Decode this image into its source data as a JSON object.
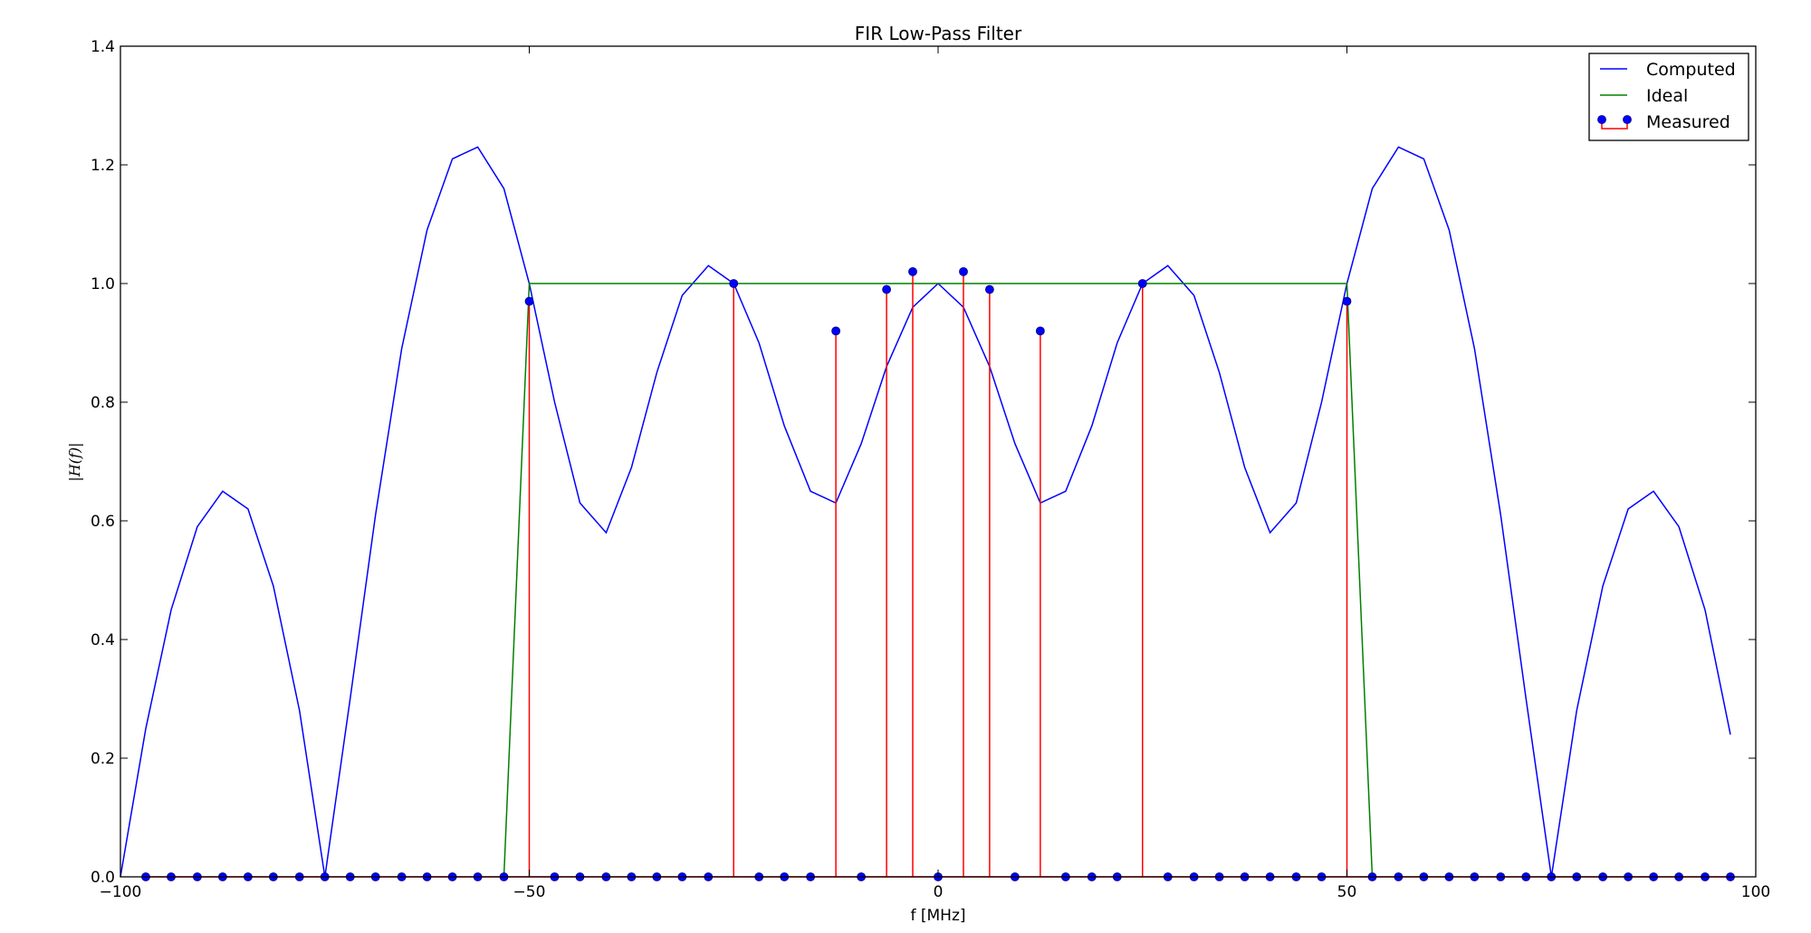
{
  "chart_data": {
    "type": "line",
    "title": "FIR Low-Pass Filter",
    "xlabel": "f [MHz]",
    "ylabel": "|H(f)|",
    "xlim": [
      -100,
      100
    ],
    "ylim": [
      0,
      1.4
    ],
    "xticks": [
      -100,
      -50,
      0,
      50,
      100
    ],
    "xtick_labels": [
      "−100",
      "−50",
      "0",
      "50",
      "100"
    ],
    "yticks": [
      0,
      0.2,
      0.4,
      0.6,
      0.8,
      1.0,
      1.2,
      1.4
    ],
    "ytick_labels": [
      "0.0",
      "0.2",
      "0.4",
      "0.6",
      "0.8",
      "1.0",
      "1.2",
      "1.4"
    ],
    "legend": {
      "placement": "top-right",
      "entries": [
        "Computed",
        "Ideal",
        "Measured"
      ]
    },
    "series": [
      {
        "name": "Computed",
        "kind": "line",
        "color": "#0000ff",
        "x": [
          -100,
          -96.9,
          -93.8,
          -90.6,
          -87.5,
          -84.4,
          -81.3,
          -78.1,
          -75,
          -71.9,
          -68.8,
          -65.6,
          -62.5,
          -59.4,
          -56.3,
          -53.1,
          -50,
          -46.9,
          -43.8,
          -40.6,
          -37.5,
          -34.4,
          -31.3,
          -28.1,
          -25,
          -21.9,
          -18.8,
          -15.6,
          -12.5,
          -9.4,
          -6.3,
          -3.1,
          0,
          3.1,
          6.3,
          9.4,
          12.5,
          15.6,
          18.8,
          21.9,
          25,
          28.1,
          31.3,
          34.4,
          37.5,
          40.6,
          43.8,
          46.9,
          50,
          53.1,
          56.3,
          59.4,
          62.5,
          65.6,
          68.8,
          71.9,
          75,
          78.1,
          81.3,
          84.4,
          87.5,
          90.6,
          93.8,
          96.9
        ],
        "values": [
          0.0,
          0.25,
          0.45,
          0.59,
          0.65,
          0.62,
          0.49,
          0.28,
          0.0,
          0.3,
          0.61,
          0.89,
          1.09,
          1.21,
          1.23,
          1.16,
          1.0,
          0.8,
          0.63,
          0.58,
          0.69,
          0.85,
          0.98,
          1.03,
          1.0,
          0.9,
          0.76,
          0.65,
          0.63,
          0.73,
          0.86,
          0.96,
          1.0,
          0.96,
          0.86,
          0.73,
          0.63,
          0.65,
          0.76,
          0.9,
          1.0,
          1.03,
          0.98,
          0.85,
          0.69,
          0.58,
          0.63,
          0.8,
          1.0,
          1.16,
          1.23,
          1.21,
          1.09,
          0.89,
          0.61,
          0.3,
          0.0,
          0.28,
          0.49,
          0.62,
          0.65,
          0.59,
          0.45,
          0.24
        ]
      },
      {
        "name": "Ideal",
        "kind": "line",
        "color": "#008000",
        "x": [
          -53.1,
          -50,
          50,
          53.1
        ],
        "values": [
          0,
          1,
          1,
          0
        ]
      },
      {
        "name": "Measured",
        "kind": "stem",
        "color": "#ff0000",
        "marker_color": "#0000ff",
        "x": [
          -96.9,
          -93.8,
          -90.6,
          -87.5,
          -84.4,
          -81.3,
          -78.1,
          -75,
          -71.9,
          -68.8,
          -65.6,
          -62.5,
          -59.4,
          -56.3,
          -53.1,
          -50,
          -46.9,
          -43.8,
          -40.6,
          -37.5,
          -34.4,
          -31.3,
          -28.1,
          -25,
          -21.9,
          -18.8,
          -15.6,
          -12.5,
          -9.4,
          -6.3,
          -3.1,
          0,
          3.1,
          6.3,
          9.4,
          12.5,
          15.6,
          18.8,
          21.9,
          25,
          28.1,
          31.3,
          34.4,
          37.5,
          40.6,
          43.8,
          46.9,
          50,
          53.1,
          56.3,
          59.4,
          62.5,
          65.6,
          68.8,
          71.9,
          75,
          78.1,
          81.3,
          84.4,
          87.5,
          90.6,
          93.8,
          96.9
        ],
        "values": [
          0,
          0,
          0,
          0,
          0,
          0,
          0,
          0,
          0,
          0,
          0,
          0,
          0,
          0,
          0,
          0.97,
          0,
          0,
          0,
          0,
          0,
          0,
          0,
          1.0,
          0,
          0,
          0,
          0.92,
          0,
          0.99,
          1.02,
          0,
          1.02,
          0.99,
          0,
          0.92,
          0,
          0,
          0,
          1.0,
          0,
          0,
          0,
          0,
          0,
          0,
          0,
          0.97,
          0,
          0,
          0,
          0,
          0,
          0,
          0,
          0,
          0,
          0,
          0,
          0,
          0,
          0,
          0
        ]
      }
    ]
  }
}
